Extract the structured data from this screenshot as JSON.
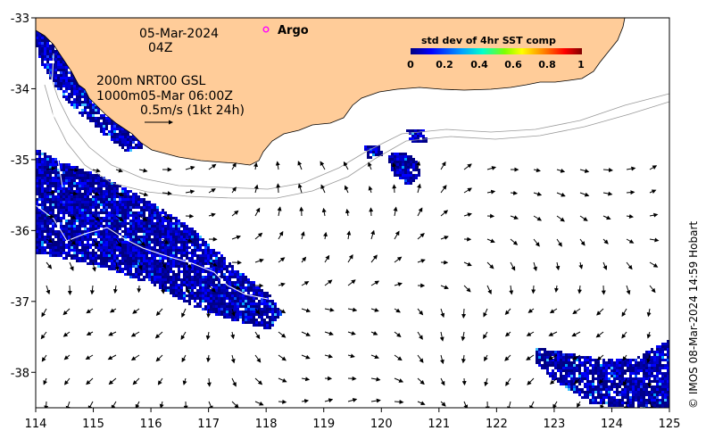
{
  "map": {
    "date": "05-Mar-2024",
    "time": "04Z",
    "depth_line": "200m  NRT00 GSL",
    "depth2_line": "1000m05-Mar 06:00Z",
    "scale_label": "0.5m/s (1kt 24h)",
    "argo_label": "Argo",
    "credit": "© IMOS 08-Mar-2024 14:59 Hobart",
    "land_color": "#ffcc99",
    "ocean_color": "#ffffff",
    "argo_color": "#ff00ff"
  },
  "colorbar": {
    "title": "std dev of 4hr SST comp",
    "ticks": [
      "0",
      "0.2",
      "0.4",
      "0.6",
      "0.8",
      "1"
    ],
    "colors": [
      "#000080",
      "#0000ff",
      "#00a0ff",
      "#00ffcc",
      "#80ff00",
      "#ffff00",
      "#ff8000",
      "#ff0000",
      "#800000"
    ]
  },
  "axes": {
    "x_ticks": [
      "114",
      "115",
      "116",
      "117",
      "118",
      "119",
      "120",
      "121",
      "122",
      "123",
      "124",
      "125"
    ],
    "y_ticks": [
      "-33",
      "-34",
      "-35",
      "-36",
      "-37",
      "-38"
    ],
    "x_range": [
      114,
      125
    ],
    "y_range": [
      -38.5,
      -33
    ]
  }
}
